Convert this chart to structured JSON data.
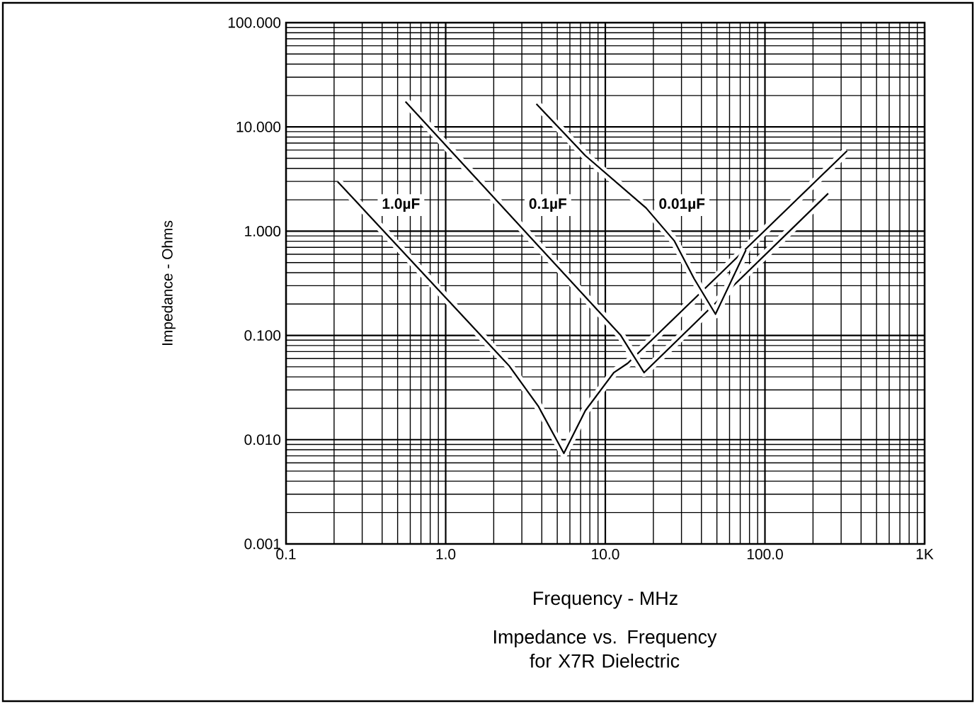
{
  "chart_data": {
    "type": "line",
    "xlabel": "Frequency - MHz",
    "ylabel": "Impedance - Ohms",
    "annotations": [
      "Impedance vs. Frequency for X7R Dielectric"
    ],
    "log": "xy",
    "grid": true,
    "line_style": "solid",
    "xlim": [
      0.1,
      1000
    ],
    "ylim": [
      0.001,
      100
    ],
    "xticks": [
      0.1,
      {
        "value": 1,
        "label": "1.0"
      },
      {
        "value": 10,
        "label": "10.0"
      },
      {
        "value": 100,
        "label": "100.0"
      },
      {
        "value": 1000,
        "label": "1K"
      }
    ],
    "yticks": [
      {
        "value": 0.001,
        "label": "0.001"
      },
      {
        "value": 0.01,
        "label": "0.010"
      },
      {
        "value": 0.1,
        "label": "0.100"
      },
      {
        "value": 1,
        "label": "1.000"
      },
      {
        "value": 10,
        "label": "10.000"
      },
      {
        "value": 100,
        "label": "100.000"
      }
    ],
    "series": [
      {
        "name": "1.0µF",
        "color": "#000000",
        "x": [
          0.21,
          2.5,
          3.8,
          5.5,
          7.5,
          11.3,
          13.8,
          327
        ],
        "values": [
          3.0,
          0.051,
          0.021,
          0.0074,
          0.019,
          0.044,
          0.054,
          5.9
        ]
      },
      {
        "name": "0.1µF",
        "color": "#000000",
        "x": [
          0.56,
          12.5,
          14.8,
          17.5,
          249
        ],
        "values": [
          17.5,
          0.1,
          0.066,
          0.044,
          2.3
        ]
      },
      {
        "name": "0.01µF",
        "color": "#000000",
        "x": [
          3.7,
          7.5,
          18,
          27,
          36,
          49,
          76
        ],
        "values": [
          16.6,
          5.3,
          1.67,
          0.81,
          0.35,
          0.16,
          0.66
        ]
      }
    ]
  }
}
